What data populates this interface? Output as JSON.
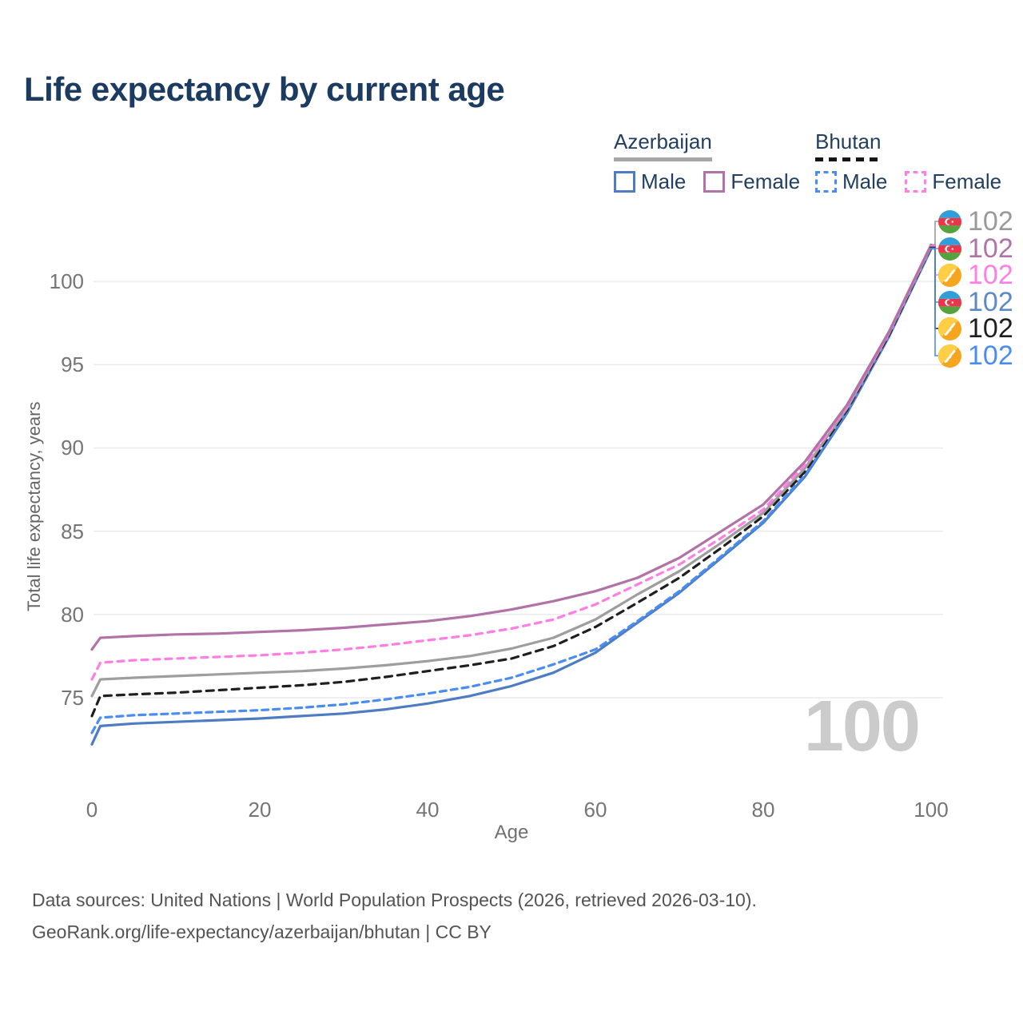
{
  "title": "Life expectancy by current age",
  "legend": {
    "groups": [
      {
        "label": "Azerbaijan",
        "underline_style": "solid",
        "underline_color": "#a7a7a7",
        "items": [
          {
            "label": "Male",
            "color": "#4d7cc3",
            "dashed": false
          },
          {
            "label": "Female",
            "color": "#b172a6",
            "dashed": false
          }
        ]
      },
      {
        "label": "Bhutan",
        "underline_style": "dashed",
        "underline_color": "#141414",
        "items": [
          {
            "label": "Male",
            "color": "#4a8df2",
            "dashed": true
          },
          {
            "label": "Female",
            "color": "#ff7ee3",
            "dashed": true
          }
        ]
      }
    ]
  },
  "watermark_age": "100",
  "footer": {
    "line1": "Data sources: United Nations | World Population Prospects (2026, retrieved 2026-03-10).",
    "line2": "GeoRank.org/life-expectancy/azerbaijan/bhutan | CC BY"
  },
  "chart_data": {
    "type": "line",
    "title": "Life expectancy by current age",
    "xlabel": "Age",
    "ylabel": "Total life expectancy, years",
    "xlim": [
      0,
      100
    ],
    "ylim": [
      71.5,
      103.5
    ],
    "x_ticks": [
      0,
      20,
      40,
      60,
      80,
      100
    ],
    "y_ticks": [
      75,
      80,
      85,
      90,
      95,
      100
    ],
    "grid": "horizontal",
    "legend_position": "top-right",
    "ages": [
      0,
      1,
      5,
      10,
      15,
      20,
      25,
      30,
      35,
      40,
      45,
      50,
      55,
      60,
      65,
      70,
      75,
      80,
      85,
      90,
      95,
      100
    ],
    "series": [
      {
        "id": "az_male",
        "name": "Azerbaijan Male",
        "country": "Azerbaijan",
        "sex": "Male",
        "color": "#4d7cc3",
        "dash": null,
        "values": [
          72.2,
          73.3,
          73.45,
          73.55,
          73.65,
          73.75,
          73.9,
          74.05,
          74.3,
          74.65,
          75.1,
          75.7,
          76.5,
          77.7,
          79.5,
          81.3,
          83.4,
          85.5,
          88.3,
          92.1,
          96.7,
          101.95
        ]
      },
      {
        "id": "bt_male",
        "name": "Bhutan Male",
        "country": "Bhutan",
        "sex": "Male",
        "color": "#4a8df2",
        "dash": "8 6",
        "values": [
          72.9,
          73.8,
          73.95,
          74.05,
          74.15,
          74.25,
          74.4,
          74.6,
          74.9,
          75.25,
          75.65,
          76.2,
          77.0,
          77.9,
          79.6,
          81.4,
          83.5,
          85.6,
          88.4,
          92.2,
          96.8,
          102.0
        ]
      },
      {
        "id": "bt_all",
        "name": "Bhutan Both sexes",
        "country": "Bhutan",
        "sex": "All",
        "color": "#1f1f1f",
        "dash": "9 7",
        "values": [
          73.9,
          75.1,
          75.2,
          75.3,
          75.45,
          75.6,
          75.75,
          75.95,
          76.25,
          76.6,
          76.95,
          77.35,
          78.1,
          79.25,
          80.7,
          82.2,
          84.0,
          85.9,
          88.6,
          92.3,
          96.8,
          102.05
        ]
      },
      {
        "id": "az_all",
        "name": "Azerbaijan Both sexes",
        "country": "Azerbaijan",
        "sex": "All",
        "color": "#9e9e9e",
        "dash": null,
        "values": [
          75.1,
          76.1,
          76.2,
          76.3,
          76.4,
          76.5,
          76.6,
          76.75,
          76.95,
          77.2,
          77.5,
          77.95,
          78.6,
          79.7,
          81.2,
          82.6,
          84.3,
          86.1,
          88.8,
          92.4,
          96.9,
          102.1
        ]
      },
      {
        "id": "bt_female",
        "name": "Bhutan Female",
        "country": "Bhutan",
        "sex": "Female",
        "color": "#ff7ee3",
        "dash": "8 7",
        "values": [
          76.1,
          77.1,
          77.25,
          77.35,
          77.45,
          77.55,
          77.7,
          77.9,
          78.15,
          78.45,
          78.75,
          79.15,
          79.7,
          80.6,
          81.8,
          83.0,
          84.6,
          86.3,
          89.0,
          92.5,
          96.9,
          102.15
        ]
      },
      {
        "id": "az_female",
        "name": "Azerbaijan Female",
        "country": "Azerbaijan",
        "sex": "Female",
        "color": "#b172a6",
        "dash": null,
        "values": [
          77.9,
          78.6,
          78.7,
          78.8,
          78.85,
          78.95,
          79.05,
          79.2,
          79.4,
          79.6,
          79.9,
          80.3,
          80.8,
          81.4,
          82.2,
          83.4,
          85.0,
          86.6,
          89.2,
          92.6,
          97.0,
          102.2
        ]
      }
    ],
    "end_labels": [
      {
        "series": "az_all",
        "flag": "azerbaijan",
        "value": "102",
        "color": "#9a9a9a"
      },
      {
        "series": "az_female",
        "flag": "azerbaijan",
        "value": "102",
        "color": "#b172a6"
      },
      {
        "series": "bt_female",
        "flag": "bhutan",
        "value": "102",
        "color": "#ff7ee3"
      },
      {
        "series": "az_male",
        "flag": "azerbaijan",
        "value": "102",
        "color": "#5b8ac6"
      },
      {
        "series": "bt_all",
        "flag": "bhutan",
        "value": "102",
        "color": "#1f1f1f"
      },
      {
        "series": "bt_male",
        "flag": "bhutan",
        "value": "102",
        "color": "#4a8df2"
      }
    ]
  }
}
